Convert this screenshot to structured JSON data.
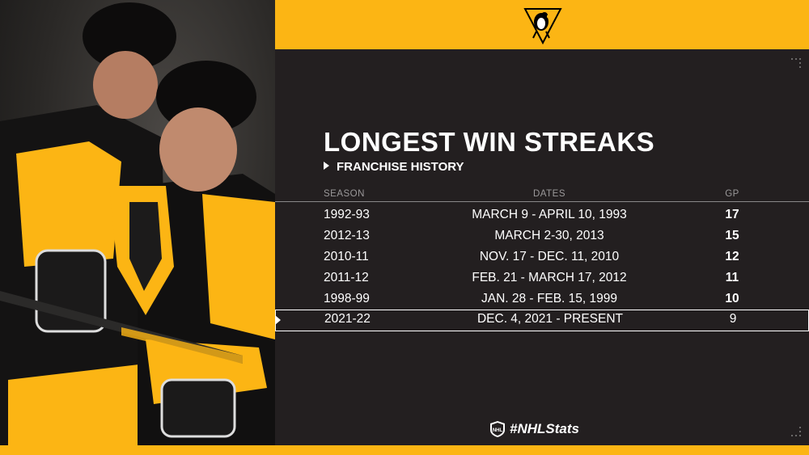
{
  "header": {
    "logo_icon": "penguins-logo-icon"
  },
  "title": "LONGEST WIN STREAKS",
  "subtitle": "FRANCHISE HISTORY",
  "table": {
    "columns": [
      "SEASON",
      "DATES",
      "GP"
    ],
    "rows": [
      {
        "season": "1992-93",
        "dates": "MARCH 9 - APRIL 10, 1993",
        "gp": "17"
      },
      {
        "season": "2012-13",
        "dates": "MARCH 2-30, 2013",
        "gp": "15"
      },
      {
        "season": "2010-11",
        "dates": "NOV. 17 - DEC. 11, 2010",
        "gp": "12"
      },
      {
        "season": "2011-12",
        "dates": "FEB. 21 - MARCH 17, 2012",
        "gp": "11"
      },
      {
        "season": "1998-99",
        "dates": "JAN. 28 - FEB. 15, 1999",
        "gp": "10"
      },
      {
        "season": "2021-22",
        "dates": "DEC. 4, 2021 - PRESENT",
        "gp": "9"
      }
    ]
  },
  "footer": {
    "hashtag": "#NHLStats",
    "icon": "nhl-shield-icon"
  },
  "colors": {
    "accent": "#fcb514",
    "panel": "#231f20",
    "text": "#ffffff"
  }
}
